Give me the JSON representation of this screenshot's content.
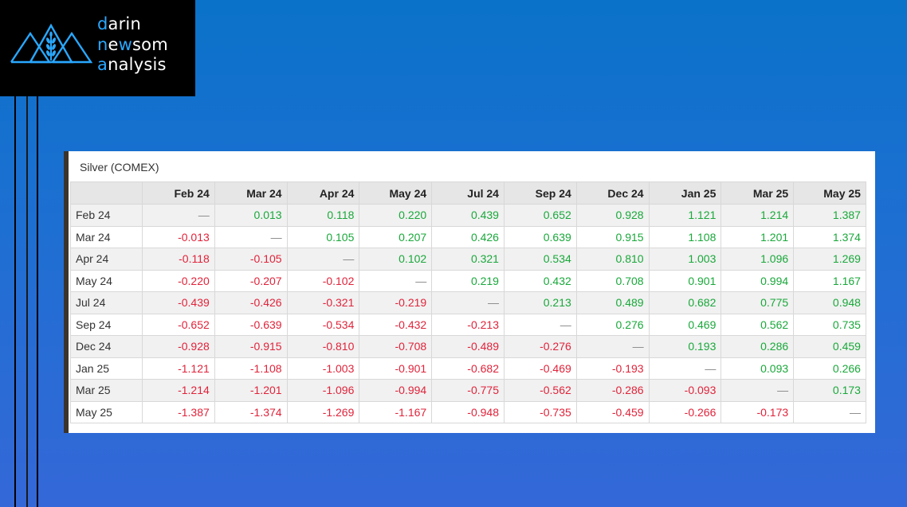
{
  "logo": {
    "line1_accent": "d",
    "line1_rest": "arin",
    "line2_accent_a": "n",
    "line2_mid": "e",
    "line2_accent_b": "w",
    "line2_rest": "som",
    "line3_accent": "a",
    "line3_rest": "nalysis"
  },
  "colors": {
    "positive": "#19a83a",
    "negative": "#e0233a",
    "accent": "#29a8ff"
  },
  "panel": {
    "title": "Silver (COMEX)",
    "columns": [
      "Feb 24",
      "Mar 24",
      "Apr 24",
      "May 24",
      "Jul 24",
      "Sep 24",
      "Dec 24",
      "Jan 25",
      "Mar 25",
      "May 25"
    ],
    "rows": [
      {
        "label": "Feb 24",
        "values": [
          "—",
          "0.013",
          "0.118",
          "0.220",
          "0.439",
          "0.652",
          "0.928",
          "1.121",
          "1.214",
          "1.387"
        ]
      },
      {
        "label": "Mar 24",
        "values": [
          "-0.013",
          "—",
          "0.105",
          "0.207",
          "0.426",
          "0.639",
          "0.915",
          "1.108",
          "1.201",
          "1.374"
        ]
      },
      {
        "label": "Apr 24",
        "values": [
          "-0.118",
          "-0.105",
          "—",
          "0.102",
          "0.321",
          "0.534",
          "0.810",
          "1.003",
          "1.096",
          "1.269"
        ]
      },
      {
        "label": "May 24",
        "values": [
          "-0.220",
          "-0.207",
          "-0.102",
          "—",
          "0.219",
          "0.432",
          "0.708",
          "0.901",
          "0.994",
          "1.167"
        ]
      },
      {
        "label": "Jul 24",
        "values": [
          "-0.439",
          "-0.426",
          "-0.321",
          "-0.219",
          "—",
          "0.213",
          "0.489",
          "0.682",
          "0.775",
          "0.948"
        ]
      },
      {
        "label": "Sep 24",
        "values": [
          "-0.652",
          "-0.639",
          "-0.534",
          "-0.432",
          "-0.213",
          "—",
          "0.276",
          "0.469",
          "0.562",
          "0.735"
        ]
      },
      {
        "label": "Dec 24",
        "values": [
          "-0.928",
          "-0.915",
          "-0.810",
          "-0.708",
          "-0.489",
          "-0.276",
          "—",
          "0.193",
          "0.286",
          "0.459"
        ]
      },
      {
        "label": "Jan 25",
        "values": [
          "-1.121",
          "-1.108",
          "-1.003",
          "-0.901",
          "-0.682",
          "-0.469",
          "-0.193",
          "—",
          "0.093",
          "0.266"
        ]
      },
      {
        "label": "Mar 25",
        "values": [
          "-1.214",
          "-1.201",
          "-1.096",
          "-0.994",
          "-0.775",
          "-0.562",
          "-0.286",
          "-0.093",
          "—",
          "0.173"
        ]
      },
      {
        "label": "May 25",
        "values": [
          "-1.387",
          "-1.374",
          "-1.269",
          "-1.167",
          "-0.948",
          "-0.735",
          "-0.459",
          "-0.266",
          "-0.173",
          "—"
        ]
      }
    ]
  }
}
